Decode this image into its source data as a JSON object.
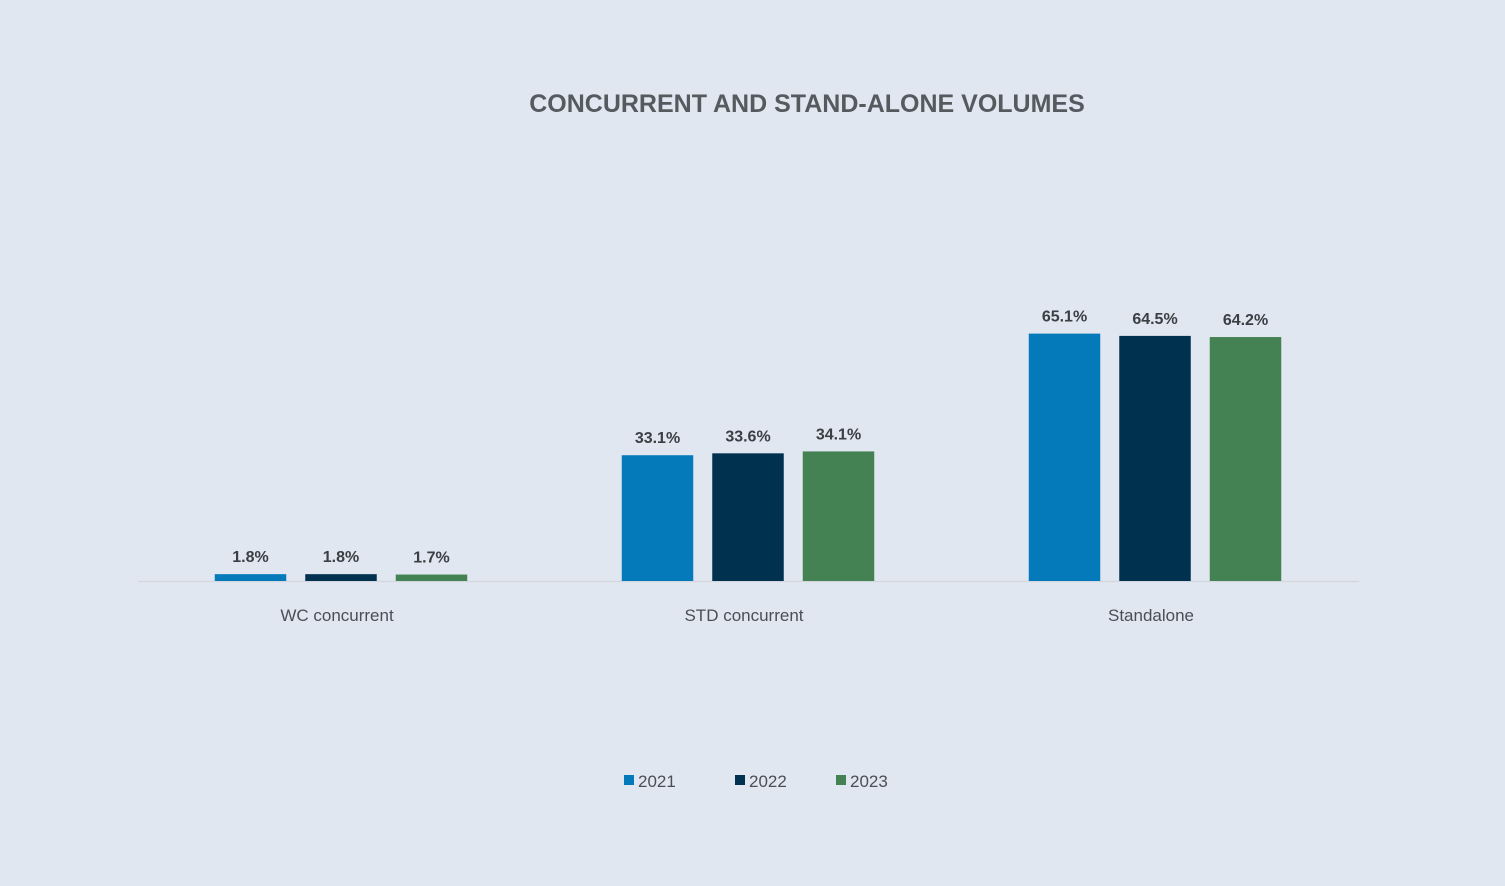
{
  "chart_data": {
    "type": "bar",
    "title": "CONCURRENT AND STAND-ALONE VOLUMES",
    "categories": [
      "WC concurrent",
      "STD concurrent",
      "Standalone"
    ],
    "series": [
      {
        "name": "2021",
        "color": "#047abb",
        "values": [
          1.8,
          33.1,
          65.1
        ],
        "labels": [
          "1.8%",
          "33.1%",
          "65.1%"
        ]
      },
      {
        "name": "2022",
        "color": "#00314f",
        "values": [
          1.8,
          33.6,
          64.5
        ],
        "labels": [
          "1.8%",
          "33.6%",
          "64.5%"
        ]
      },
      {
        "name": "2023",
        "color": "#448253",
        "values": [
          1.7,
          34.1,
          64.2
        ],
        "labels": [
          "1.7%",
          "34.1%",
          "64.2%"
        ]
      }
    ],
    "ylim": [
      0,
      100
    ],
    "grid": false,
    "legend_position": "bottom-center",
    "axis_color": "#d3d8e0"
  }
}
